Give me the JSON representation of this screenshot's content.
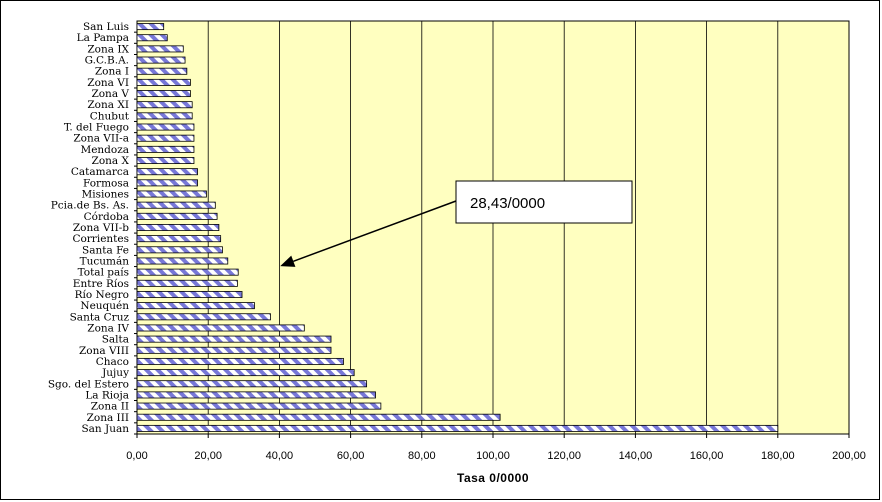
{
  "chart_data": {
    "type": "bar",
    "orientation": "horizontal",
    "categories": [
      "San Juan",
      "Zona III",
      "Zona II",
      "La Rioja",
      "Sgo. del Estero",
      "Jujuy",
      "Chaco",
      "Zona VIII",
      "Salta",
      "Zona IV",
      "Santa Cruz",
      "Neuquén",
      "Río Negro",
      "Entre Ríos",
      "Total país",
      "Tucumán",
      "Santa Fe",
      "Corrientes",
      "Zona VII-b",
      "Córdoba",
      "Pcia.de Bs. As.",
      "Misiones",
      "Formosa",
      "Catamarca",
      "Zona X",
      "Mendoza",
      "Zona VII-a",
      "T. del Fuego",
      "Chubut",
      "Zona XI",
      "Zona V",
      "Zona VI",
      "Zona I",
      "G.C.B.A.",
      "Zona IX",
      "La Pampa",
      "San Luis"
    ],
    "values": [
      180,
      102,
      68.5,
      67,
      64.5,
      61,
      58,
      54.5,
      54.5,
      47,
      37.5,
      33,
      29.5,
      28.2,
      28.43,
      25.5,
      24,
      23.5,
      23,
      22.5,
      22,
      19.5,
      17,
      17,
      16,
      16,
      16,
      16,
      15.5,
      15.5,
      15,
      15,
      14,
      13.5,
      13,
      8.5,
      7.5
    ],
    "xlabel": "Tasa 0/0000",
    "ylabel": "",
    "xlim": [
      0,
      200
    ],
    "xticks": [
      "0,00",
      "20,00",
      "40,00",
      "60,00",
      "80,00",
      "100,00",
      "120,00",
      "140,00",
      "160,00",
      "180,00",
      "200,00"
    ],
    "grid": true,
    "annotation": {
      "text": "28,43/0000",
      "points_to_value": 28.43
    },
    "colors": {
      "plot_bg": "#FFFFC0",
      "bar_stripe": "#7878D8",
      "bar_base": "#FFFFFF",
      "bar_edge": "#000000",
      "grid": "#000000"
    }
  }
}
